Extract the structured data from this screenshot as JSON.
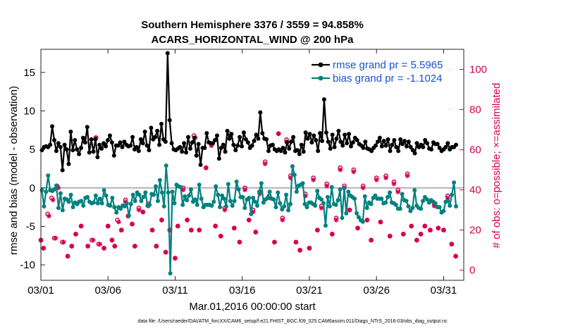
{
  "chart_data": {
    "type": "line",
    "title_line1": "Southern Hemisphere 3376 / 3559 = 94.858%",
    "title_line2": "ACARS_HORIZONTAL_WIND @ 200 hPa",
    "ylabel_left": "rmse and bias (model - observation)",
    "ylabel_right": "# of obs: o=possible; ×=assimilated",
    "xlabel": "Mar.01,2016 00:00:00 start",
    "footnote": "data file: /Users/raeder/DAI/ATM_forcXX/CAM6_setup/f.e21.FHIST_BGC.f09_025.CAM6assim.011/Diags_NTrS_2016-03/obs_diag_output.nc",
    "x_range_days": [
      0,
      31.5
    ],
    "ylim_left": [
      -12,
      18
    ],
    "ylim_right": [
      -5,
      110
    ],
    "x_ticks": [
      {
        "day": 0,
        "label": "03/01"
      },
      {
        "day": 5,
        "label": "03/06"
      },
      {
        "day": 10,
        "label": "03/11"
      },
      {
        "day": 15,
        "label": "03/16"
      },
      {
        "day": 20,
        "label": "03/21"
      },
      {
        "day": 25,
        "label": "03/26"
      },
      {
        "day": 30,
        "label": "03/31"
      }
    ],
    "y_ticks_left": [
      -10,
      -5,
      0,
      5,
      10,
      15
    ],
    "y_ticks_right": [
      0,
      20,
      40,
      60,
      80,
      100
    ],
    "legend": [
      {
        "name": "rmse grand pr = 5.5965",
        "color": "#000000"
      },
      {
        "name": "bias grand pr = -1.1024",
        "color": "#00817f"
      }
    ],
    "colors": {
      "rmse": "#000000",
      "bias": "#00817f",
      "obs": "#d6004f",
      "zero_line": "#b3b3b3"
    },
    "series": [
      {
        "name": "rmse",
        "values": [
          4.9,
          5.3,
          5.4,
          5.3,
          5.6,
          8.0,
          6.2,
          4.8,
          5.8,
          5.3,
          2.3,
          5.6,
          5.0,
          3.1,
          7.3,
          4.9,
          6.2,
          5.0,
          4.4,
          5.2,
          6.5,
          5.9,
          7.9,
          4.6,
          6.3,
          4.7,
          6.3,
          4.0,
          5.6,
          5.1,
          5.8,
          5.4,
          6.2,
          6.8,
          5.9,
          4.2,
          5.5,
          5.5,
          5.9,
          5.3,
          6.0,
          5.6,
          5.4,
          5.5,
          6.6,
          5.0,
          5.3,
          4.8,
          6.3,
          5.8,
          7.3,
          5.5,
          4.9,
          7.8,
          6.3,
          6.6,
          7.4,
          5.6,
          8.3,
          6.3,
          6.0,
          17.5,
          8.8,
          5.8,
          5.0,
          4.9,
          5.1,
          5.3,
          4.7,
          5.8,
          4.6,
          6.6,
          5.1,
          5.9,
          6.5,
          4.2,
          5.7,
          3.0,
          5.2,
          5.2,
          7.1,
          5.9,
          5.8,
          5.8,
          6.2,
          6.8,
          3.8,
          5.2,
          5.6,
          4.7,
          7.4,
          6.4,
          7.0,
          5.6,
          4.9,
          5.5,
          6.6,
          5.4,
          7.2,
          6.3,
          5.9,
          5.2,
          5.5,
          6.1,
          6.9,
          6.4,
          9.8,
          7.1,
          6.4,
          6.3,
          4.8,
          5.5,
          5.6,
          5.0,
          4.8,
          5.0,
          4.8,
          5.2,
          4.6,
          5.9,
          5.1,
          6.0,
          6.6,
          4.8,
          4.9,
          4.4,
          5.6,
          4.7,
          7.2,
          6.4,
          7.0,
          5.9,
          6.8,
          6.2,
          4.8,
          7.1,
          6.1,
          11.5,
          7.2,
          6.0,
          5.1,
          6.9,
          5.3,
          6.4,
          7.4,
          6.0,
          5.5,
          6.9,
          5.8,
          7.0,
          5.4,
          5.9,
          6.5,
          6.2,
          5.7,
          5.5,
          5.2,
          6.0,
          5.1,
          5.0,
          4.8,
          5.2,
          5.5,
          6.0,
          6.5,
          5.4,
          6.1,
          5.5,
          6.3,
          4.8,
          5.6,
          6.2,
          5.3,
          4.8,
          6.3,
          5.7,
          6.1,
          5.4,
          6.0,
          5.3,
          4.9,
          4.5,
          5.8,
          5.3,
          5.6,
          5.3,
          6.2,
          5.8,
          5.1,
          5.0,
          5.9,
          5.7,
          5.7,
          5.2,
          4.8,
          5.0,
          5.3,
          5.8,
          5.0,
          5.3,
          5.3,
          5.6
        ]
      },
      {
        "name": "bias",
        "values": [
          -0.3,
          -2.4,
          -0.5,
          1.6,
          -0.3,
          -0.4,
          -0.2,
          0.3,
          -2.6,
          -0.7,
          -2.9,
          -1.4,
          -1.5,
          -1.8,
          -0.9,
          -2.5,
          -1.9,
          -2.1,
          -1.8,
          -1.7,
          -2.3,
          -1.3,
          -1.2,
          -1.8,
          -2.0,
          -1.9,
          -1.0,
          -2.0,
          -1.4,
          -2.0,
          -0.3,
          -1.0,
          -2.2,
          -2.3,
          -1.3,
          -2.5,
          -3.2,
          -2.5,
          -2.7,
          -2.3,
          -2.4,
          -2.0,
          -3.6,
          -2.1,
          -0.9,
          -1.7,
          -0.6,
          -0.9,
          -1.7,
          -1.2,
          -0.6,
          -2.3,
          -2.2,
          -0.8,
          -0.9,
          0.2,
          -1.7,
          1.0,
          -0.6,
          -2.4,
          2.9,
          -0.6,
          -11.1,
          -0.5,
          -2.0,
          0.4,
          0.2,
          0.1,
          -2.2,
          -1.1,
          -1.6,
          -1.0,
          -0.2,
          -1.8,
          -1.5,
          -2.2,
          0.4,
          -1.4,
          -2.5,
          -2.2,
          -2.2,
          -2.2,
          -2.3,
          -1.8,
          0.2,
          -0.9,
          -2.5,
          -1.0,
          -1.4,
          -2.4,
          0.5,
          -1.7,
          -2.3,
          -1.7,
          0.8,
          -0.2,
          -1.2,
          -1.2,
          -2.6,
          -1.5,
          -1.3,
          -3.4,
          -1.3,
          -1.8,
          -2.3,
          -0.5,
          0.6,
          -1.9,
          -1.5,
          -1.3,
          -0.5,
          -1.4,
          -1.5,
          -2.5,
          -0.6,
          -2.0,
          -2.8,
          -2.4,
          -0.9,
          -2.9,
          -2.1,
          2.8,
          1.7,
          -0.5,
          0.3,
          0.4,
          0.6,
          -2.1,
          -2.5,
          -1.9,
          -1.9,
          -2.1,
          -2.3,
          -0.4,
          -1.3,
          -1.5,
          -2.0,
          -4.9,
          -1.2,
          -2.4,
          0.1,
          -2.1,
          -2.2,
          -1.6,
          -0.2,
          -3.9,
          0.0,
          -3.3,
          -0.5,
          -1.0,
          -1.2,
          -1.4,
          -3.3,
          -3.8,
          -4.2,
          -4.4,
          -1.1,
          -2.6,
          -1.9,
          -2.1,
          -1.3,
          -1.0,
          -1.4,
          -1.4,
          -1.4,
          -2.0,
          -1.9,
          -1.2,
          -0.6,
          -1.9,
          -2.0,
          -2.2,
          -2.7,
          -2.7,
          -0.8,
          -1.6,
          -1.7,
          -2.4,
          -3.0,
          -2.6,
          -0.3,
          -2.3,
          -2.6,
          -2.7,
          -1.7,
          -1.2,
          -1.5,
          -1.9,
          -1.6,
          -1.8,
          -2.0,
          -2.5,
          -2.5,
          -3.2,
          -3.0,
          -1.8,
          -1.7,
          -2.3,
          -0.9,
          0.7,
          -2.4
        ]
      },
      {
        "name": "obs_possible",
        "points": [
          [
            0.0,
            15
          ],
          [
            0.2,
            11
          ],
          [
            0.5,
            28
          ],
          [
            0.8,
            36
          ],
          [
            1.0,
            16
          ],
          [
            1.2,
            42
          ],
          [
            1.6,
            14
          ],
          [
            2.0,
            7
          ],
          [
            2.3,
            12
          ],
          [
            2.6,
            18
          ],
          [
            3.0,
            22
          ],
          [
            3.5,
            12
          ],
          [
            3.8,
            15
          ],
          [
            4.1,
            66
          ],
          [
            4.3,
            13
          ],
          [
            4.7,
            11
          ],
          [
            5.0,
            22
          ],
          [
            5.3,
            15
          ],
          [
            5.5,
            12
          ],
          [
            5.7,
            25
          ],
          [
            6.0,
            20
          ],
          [
            6.3,
            35
          ],
          [
            6.5,
            27
          ],
          [
            6.8,
            23
          ],
          [
            7.0,
            12
          ],
          [
            7.3,
            31
          ],
          [
            7.6,
            29
          ],
          [
            8.0,
            33
          ],
          [
            8.3,
            20
          ],
          [
            8.6,
            12
          ],
          [
            9.0,
            25
          ],
          [
            9.3,
            9
          ],
          [
            9.6,
            20
          ],
          [
            10.0,
            6
          ],
          [
            10.2,
            22
          ],
          [
            10.6,
            41
          ],
          [
            10.9,
            25
          ],
          [
            11.2,
            20
          ],
          [
            11.4,
            67
          ],
          [
            11.8,
            20
          ],
          [
            12.3,
            51
          ],
          [
            12.7,
            63
          ],
          [
            13.0,
            22
          ],
          [
            13.4,
            17
          ],
          [
            13.7,
            31
          ],
          [
            14.0,
            68
          ],
          [
            14.4,
            21
          ],
          [
            14.8,
            14
          ],
          [
            15.2,
            41
          ],
          [
            15.5,
            25
          ],
          [
            15.8,
            30
          ],
          [
            16.0,
            19
          ],
          [
            16.3,
            39
          ],
          [
            16.7,
            54
          ],
          [
            17.0,
            37
          ],
          [
            17.4,
            14
          ],
          [
            17.7,
            68
          ],
          [
            18.0,
            26
          ],
          [
            18.3,
            65
          ],
          [
            18.6,
            47
          ],
          [
            19.0,
            14
          ],
          [
            19.3,
            10
          ],
          [
            19.7,
            38
          ],
          [
            20.0,
            11
          ],
          [
            20.3,
            46
          ],
          [
            20.6,
            20
          ],
          [
            20.9,
            32
          ],
          [
            21.3,
            43
          ],
          [
            21.7,
            18
          ],
          [
            22.0,
            26
          ],
          [
            22.3,
            51
          ],
          [
            22.6,
            42
          ],
          [
            23.0,
            30
          ],
          [
            23.3,
            50
          ],
          [
            23.6,
            21
          ],
          [
            24.0,
            42
          ],
          [
            24.3,
            25
          ],
          [
            24.6,
            15
          ],
          [
            25.0,
            46
          ],
          [
            25.3,
            24
          ],
          [
            25.7,
            47
          ],
          [
            26.0,
            17
          ],
          [
            26.3,
            44
          ],
          [
            26.6,
            40
          ],
          [
            27.0,
            18
          ],
          [
            27.3,
            48
          ],
          [
            27.6,
            22
          ],
          [
            28.0,
            15
          ],
          [
            28.3,
            18
          ],
          [
            28.6,
            22
          ],
          [
            29.0,
            20
          ],
          [
            29.3,
            33
          ],
          [
            29.6,
            21
          ],
          [
            30.0,
            20
          ],
          [
            30.3,
            37
          ],
          [
            30.6,
            13
          ],
          [
            30.9,
            7
          ]
        ]
      },
      {
        "name": "obs_assimilated",
        "points": [
          [
            0.0,
            15
          ],
          [
            0.2,
            11
          ],
          [
            0.6,
            27
          ],
          [
            0.9,
            35
          ],
          [
            1.1,
            16
          ],
          [
            1.3,
            41
          ],
          [
            1.7,
            14
          ],
          [
            2.0,
            7
          ],
          [
            2.3,
            12
          ],
          [
            2.6,
            18
          ],
          [
            3.0,
            22
          ],
          [
            3.5,
            12
          ],
          [
            3.9,
            15
          ],
          [
            4.1,
            66
          ],
          [
            4.4,
            13
          ],
          [
            4.7,
            11
          ],
          [
            5.0,
            22
          ],
          [
            5.3,
            15
          ],
          [
            5.5,
            12
          ],
          [
            5.8,
            24
          ],
          [
            6.0,
            20
          ],
          [
            6.3,
            34
          ],
          [
            6.5,
            27
          ],
          [
            6.8,
            23
          ],
          [
            7.0,
            12
          ],
          [
            7.3,
            30
          ],
          [
            7.6,
            29
          ],
          [
            8.0,
            32
          ],
          [
            8.3,
            20
          ],
          [
            8.6,
            12
          ],
          [
            9.0,
            25
          ],
          [
            9.3,
            9
          ],
          [
            9.6,
            20
          ],
          [
            10.0,
            6
          ],
          [
            10.2,
            22
          ],
          [
            10.6,
            40
          ],
          [
            10.9,
            25
          ],
          [
            11.2,
            20
          ],
          [
            11.5,
            66
          ],
          [
            11.8,
            20
          ],
          [
            12.3,
            51
          ],
          [
            12.7,
            62
          ],
          [
            13.0,
            22
          ],
          [
            13.4,
            17
          ],
          [
            13.7,
            30
          ],
          [
            14.1,
            67
          ],
          [
            14.4,
            21
          ],
          [
            14.8,
            14
          ],
          [
            15.2,
            40
          ],
          [
            15.5,
            25
          ],
          [
            15.8,
            29
          ],
          [
            16.0,
            19
          ],
          [
            16.3,
            38
          ],
          [
            16.7,
            53
          ],
          [
            17.0,
            36
          ],
          [
            17.4,
            14
          ],
          [
            17.7,
            68
          ],
          [
            18.0,
            25
          ],
          [
            18.3,
            64
          ],
          [
            18.6,
            46
          ],
          [
            19.0,
            14
          ],
          [
            19.3,
            10
          ],
          [
            19.7,
            37
          ],
          [
            20.0,
            11
          ],
          [
            20.3,
            45
          ],
          [
            20.6,
            20
          ],
          [
            20.9,
            31
          ],
          [
            21.3,
            42
          ],
          [
            21.7,
            18
          ],
          [
            22.0,
            25
          ],
          [
            22.3,
            50
          ],
          [
            22.6,
            41
          ],
          [
            23.0,
            30
          ],
          [
            23.3,
            49
          ],
          [
            23.6,
            21
          ],
          [
            24.0,
            41
          ],
          [
            24.3,
            25
          ],
          [
            24.6,
            15
          ],
          [
            25.0,
            45
          ],
          [
            25.3,
            24
          ],
          [
            25.7,
            46
          ],
          [
            26.0,
            17
          ],
          [
            26.3,
            43
          ],
          [
            26.6,
            39
          ],
          [
            27.0,
            18
          ],
          [
            27.3,
            47
          ],
          [
            27.6,
            22
          ],
          [
            28.0,
            15
          ],
          [
            28.3,
            18
          ],
          [
            28.6,
            22
          ],
          [
            29.0,
            20
          ],
          [
            29.3,
            32
          ],
          [
            29.6,
            21
          ],
          [
            30.0,
            20
          ],
          [
            30.3,
            36
          ],
          [
            30.6,
            13
          ],
          [
            30.9,
            7
          ]
        ]
      }
    ]
  }
}
